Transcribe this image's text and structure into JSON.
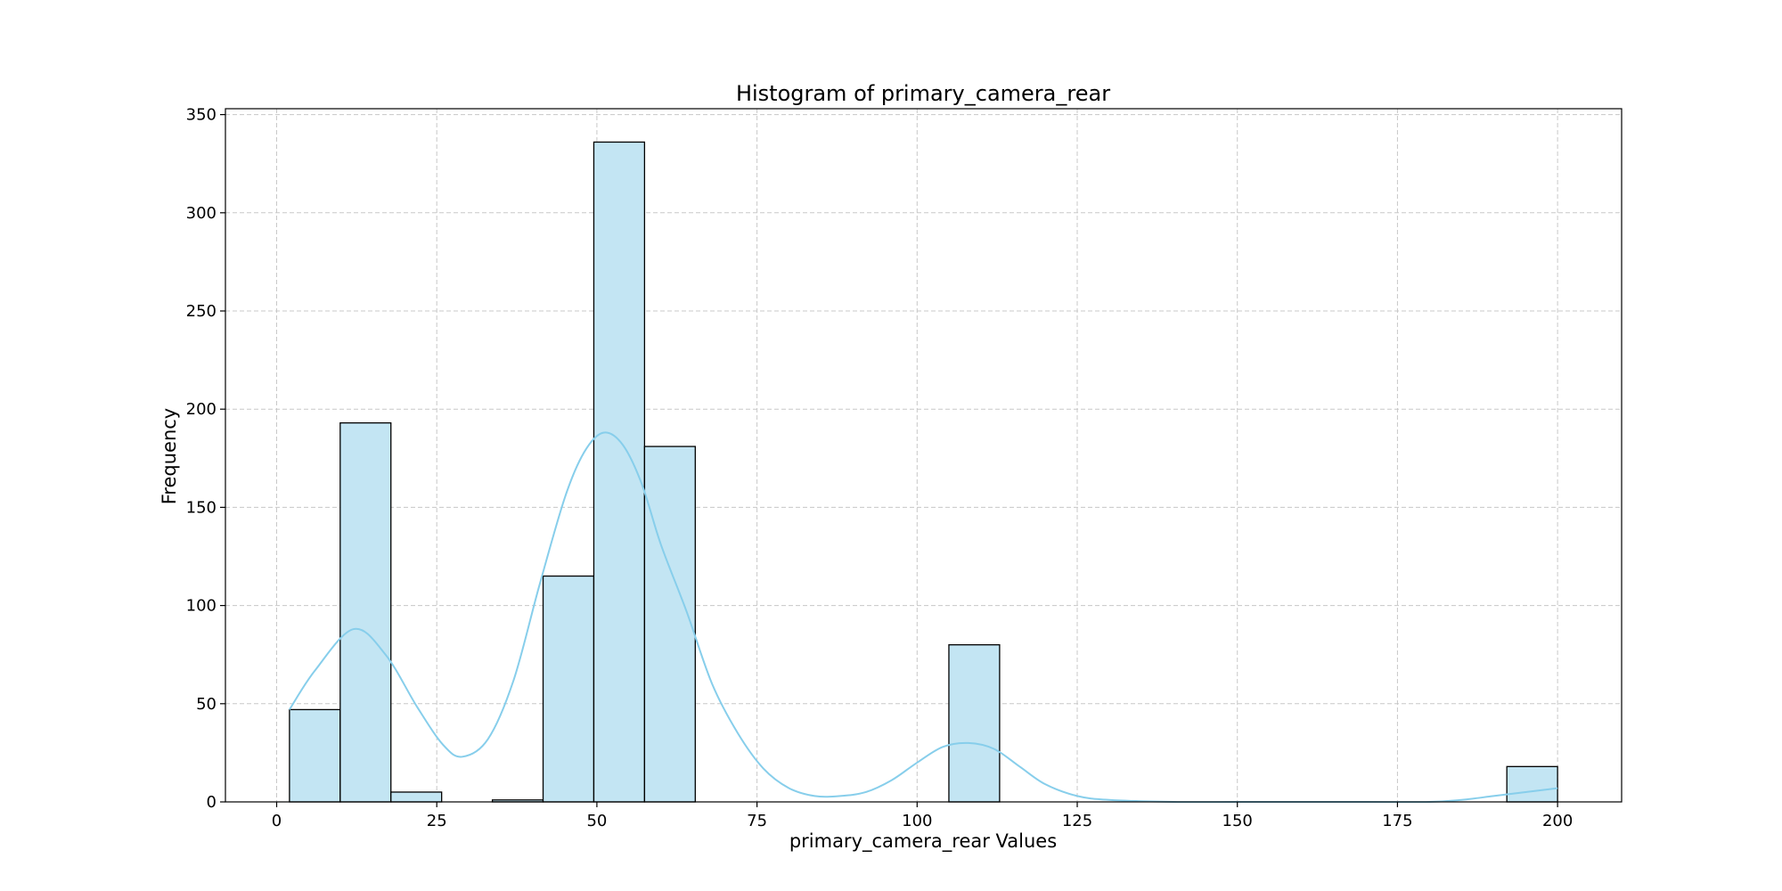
{
  "chart_data": {
    "type": "bar",
    "title": "Histogram of primary_camera_rear",
    "xlabel": "primary_camera_rear Values",
    "ylabel": "Frequency",
    "xlim": [
      -8,
      210
    ],
    "ylim": [
      0,
      353
    ],
    "xticks": [
      0,
      25,
      50,
      75,
      100,
      125,
      150,
      175,
      200
    ],
    "yticks": [
      0,
      50,
      100,
      150,
      200,
      250,
      300,
      350
    ],
    "grid": true,
    "bin_width": 7.92,
    "bins": [
      {
        "start": 2.0,
        "count": 47
      },
      {
        "start": 9.92,
        "count": 193
      },
      {
        "start": 17.84,
        "count": 5
      },
      {
        "start": 25.76,
        "count": 0
      },
      {
        "start": 33.68,
        "count": 1
      },
      {
        "start": 41.6,
        "count": 115
      },
      {
        "start": 49.52,
        "count": 336
      },
      {
        "start": 57.44,
        "count": 181
      },
      {
        "start": 65.36,
        "count": 0
      },
      {
        "start": 73.28,
        "count": 0
      },
      {
        "start": 81.2,
        "count": 0
      },
      {
        "start": 89.12,
        "count": 0
      },
      {
        "start": 97.04,
        "count": 0
      },
      {
        "start": 104.96,
        "count": 80
      },
      {
        "start": 112.88,
        "count": 0
      },
      {
        "start": 120.8,
        "count": 0
      },
      {
        "start": 128.72,
        "count": 0
      },
      {
        "start": 136.64,
        "count": 0
      },
      {
        "start": 144.56,
        "count": 0
      },
      {
        "start": 152.48,
        "count": 0
      },
      {
        "start": 160.4,
        "count": 0
      },
      {
        "start": 168.32,
        "count": 0
      },
      {
        "start": 176.24,
        "count": 0
      },
      {
        "start": 184.16,
        "count": 0
      },
      {
        "start": 192.08,
        "count": 18
      }
    ],
    "kde": {
      "x": [
        2,
        6,
        12,
        17,
        22,
        26,
        29,
        33,
        37,
        41,
        45,
        48,
        51,
        54,
        57,
        60,
        64,
        68,
        72,
        76,
        80,
        84,
        88,
        92,
        96,
        100,
        104,
        108,
        112,
        116,
        120,
        125,
        130,
        140,
        150,
        160,
        170,
        180,
        185,
        190,
        195,
        200
      ],
      "y": [
        47,
        67,
        88,
        75,
        48,
        29,
        23,
        32,
        62,
        110,
        155,
        178,
        188,
        182,
        162,
        131,
        97,
        60,
        35,
        17,
        7,
        3,
        3,
        5,
        11,
        20,
        28,
        30,
        27,
        18,
        9,
        3,
        1,
        0,
        0,
        0,
        0,
        0,
        1,
        3,
        5,
        7
      ]
    },
    "colors": {
      "bar_fill": "#c3e5f3",
      "bar_edge": "#000000",
      "kde_line": "#87ceeb",
      "grid": "#c8c8c8"
    }
  }
}
